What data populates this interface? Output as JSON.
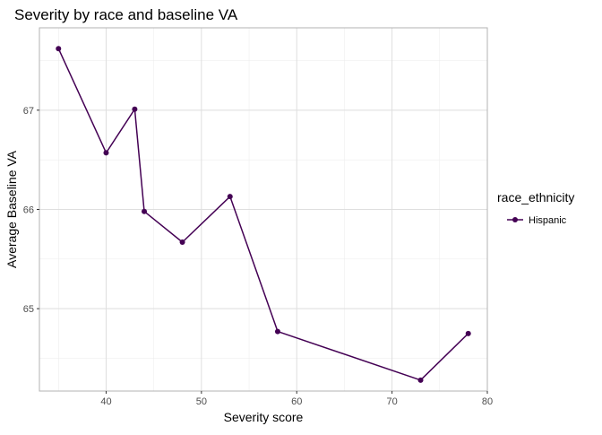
{
  "chart_data": {
    "type": "line",
    "title": "Severity by race and baseline VA",
    "xlabel": "Severity score",
    "ylabel": "Average Baseline VA",
    "xlim": [
      33,
      80
    ],
    "ylim": [
      64.17,
      67.83
    ],
    "xticks": [
      40,
      50,
      60,
      70,
      80
    ],
    "yticks": [
      65,
      66,
      67
    ],
    "grid": true,
    "legend": {
      "title": "race_ethnicity",
      "placement": "right"
    },
    "series": [
      {
        "name": "Hispanic",
        "color": "#440154",
        "x": [
          35,
          40,
          43,
          44,
          48,
          53,
          58,
          73,
          78
        ],
        "y": [
          67.62,
          66.57,
          67.01,
          65.98,
          65.67,
          66.13,
          64.77,
          64.28,
          64.75
        ]
      }
    ]
  }
}
